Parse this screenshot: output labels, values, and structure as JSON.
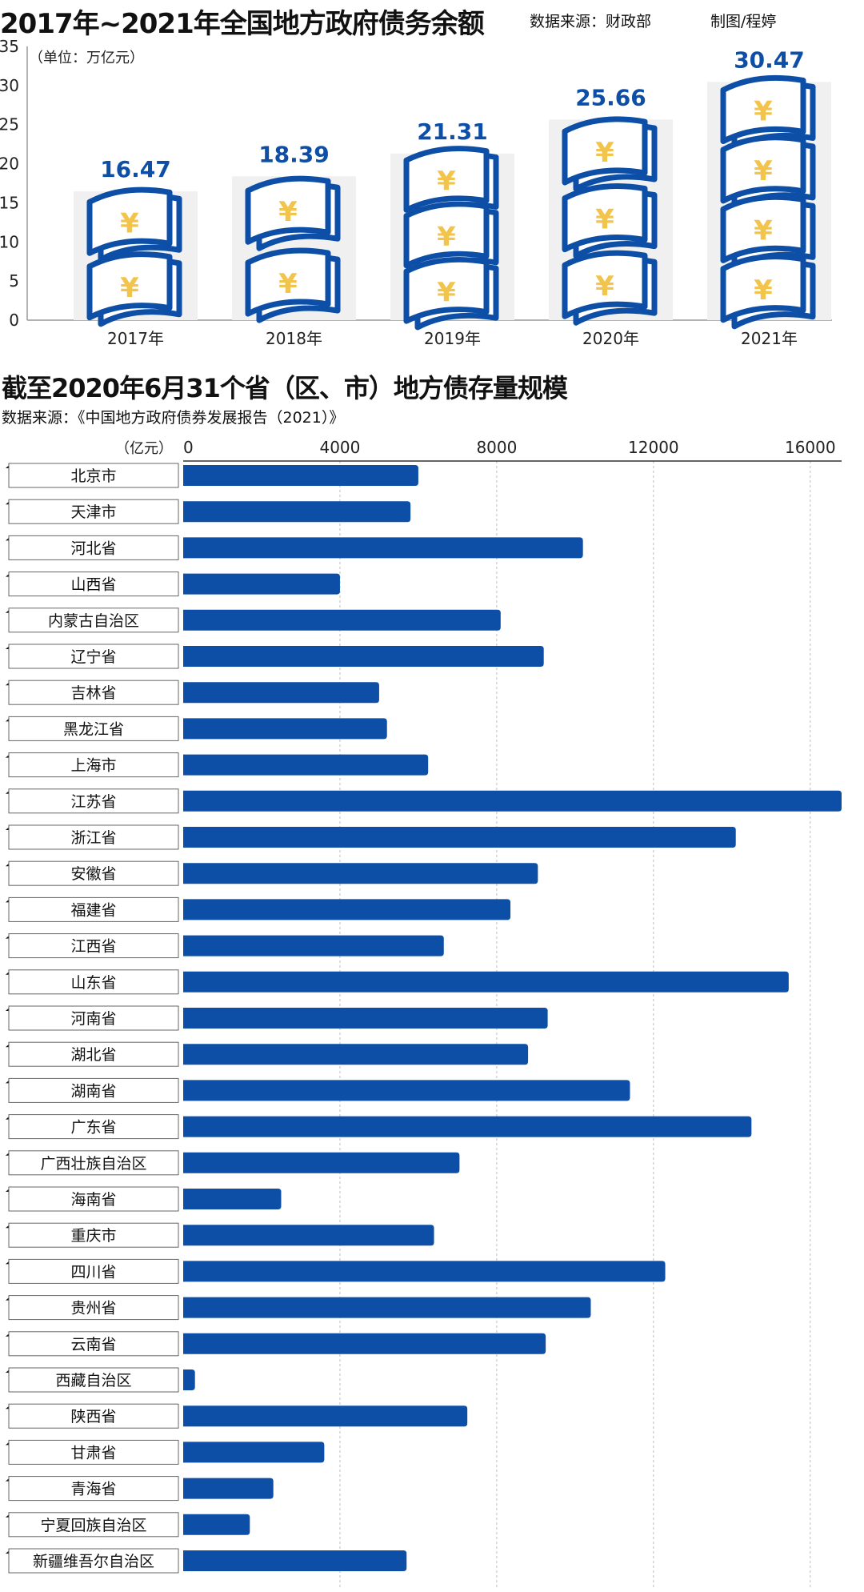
{
  "header1": {
    "title": "2017年~2021年全国地方政府债务余额",
    "source": "数据来源：财政部",
    "credit": "制图/程婷"
  },
  "header2": {
    "title": "截至2020年6月31个省（区、市）地方债存量规模",
    "source": "数据来源：《中国地方政府债券发展报告（2021）》"
  },
  "colors": {
    "bar_blue": "#0d4ea6",
    "yen_gold": "#f2c44c",
    "panel_bg": "#f0f0f0"
  },
  "icons": [
    "yen-banknote-icon"
  ],
  "chart_data": [
    {
      "type": "bar",
      "unit_label": "（单位：万亿元）",
      "categories": [
        "2017年",
        "2018年",
        "2019年",
        "2020年",
        "2021年"
      ],
      "values": [
        16.47,
        18.39,
        21.31,
        25.66,
        30.47
      ],
      "value_labels": [
        "16.47",
        "18.39",
        "21.31",
        "25.66",
        "30.47"
      ],
      "yticks": [
        "0",
        "5",
        "10",
        "15",
        "20",
        "25",
        "30",
        "35"
      ],
      "ylim": [
        0,
        35
      ],
      "grid": false
    },
    {
      "type": "bar",
      "orientation": "horizontal",
      "unit_label": "（亿元）",
      "xticks": [
        "0",
        "4000",
        "8000",
        "12000",
        "16000"
      ],
      "xlim": [
        0,
        16800
      ],
      "grid": true,
      "categories": [
        "北京市",
        "天津市",
        "河北省",
        "山西省",
        "内蒙古自治区",
        "辽宁省",
        "吉林省",
        "黑龙江省",
        "上海市",
        "江苏省",
        "浙江省",
        "安徽省",
        "福建省",
        "江西省",
        "山东省",
        "河南省",
        "湖北省",
        "湖南省",
        "广东省",
        "广西壮族自治区",
        "海南省",
        "重庆市",
        "四川省",
        "贵州省",
        "云南省",
        "西藏自治区",
        "陕西省",
        "甘肃省",
        "青海省",
        "宁夏回族自治区",
        "新疆维吾尔自治区"
      ],
      "values": [
        6000,
        5800,
        10200,
        4000,
        8100,
        9200,
        5000,
        5200,
        6250,
        16800,
        14100,
        9050,
        8350,
        6650,
        15450,
        9300,
        8800,
        11400,
        14500,
        7050,
        2500,
        6400,
        12300,
        10400,
        9250,
        300,
        7250,
        3600,
        2300,
        1700,
        5700
      ]
    }
  ]
}
